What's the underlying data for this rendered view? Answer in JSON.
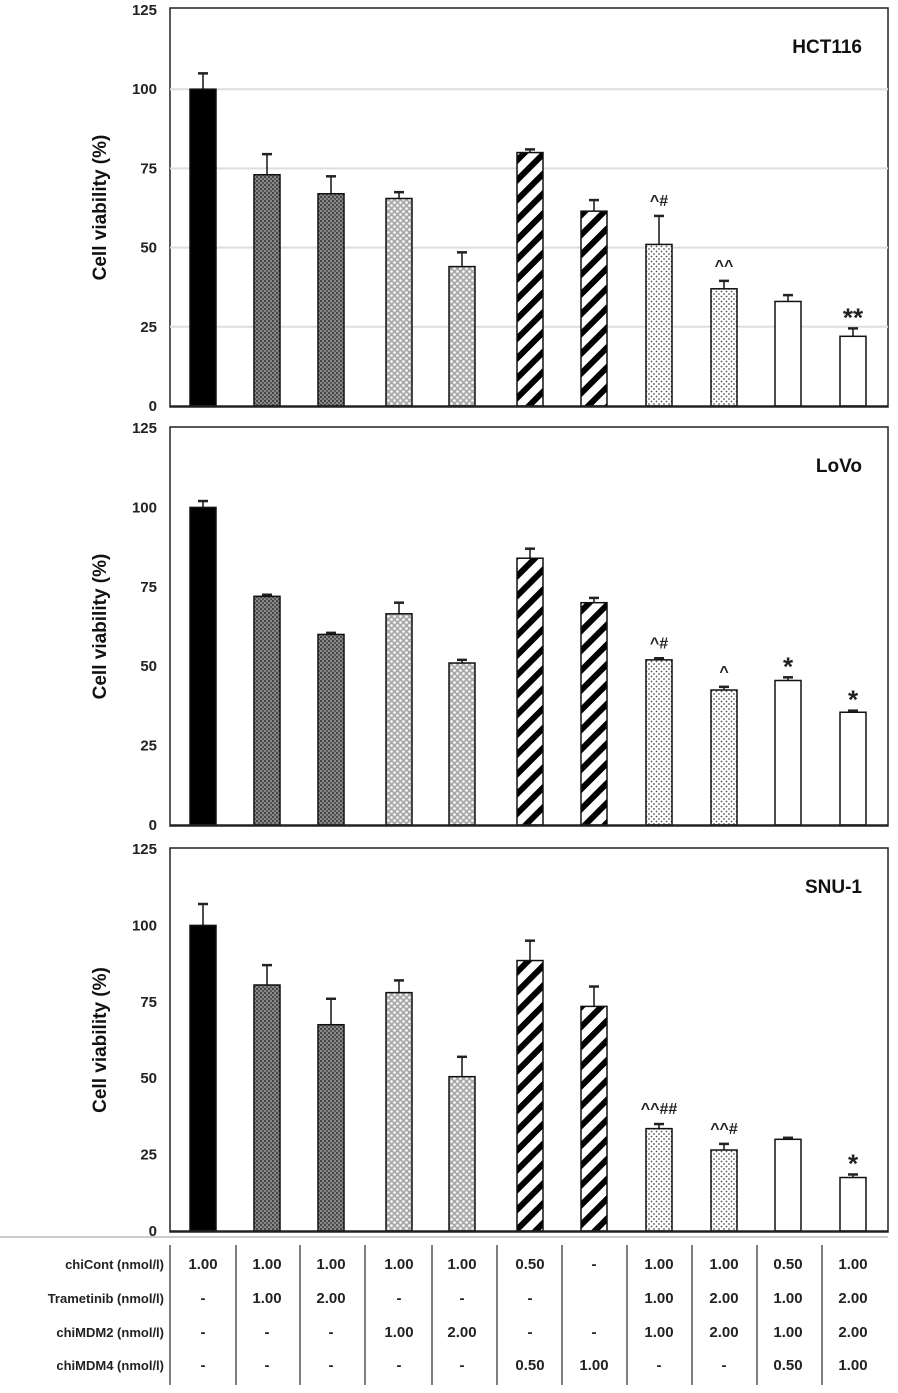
{
  "chart_data": [
    {
      "type": "bar",
      "title": "HCT116",
      "ylabel": "Cell viability (%)",
      "ylim": [
        0,
        125
      ],
      "yticks": [
        0,
        25,
        50,
        75,
        100,
        125
      ],
      "grid": true,
      "values": [
        100,
        73,
        67,
        65.5,
        44,
        80,
        61.5,
        51,
        37,
        33,
        22
      ],
      "error_upper": [
        105,
        79.5,
        72.5,
        67.5,
        48.5,
        81,
        65,
        60,
        39.5,
        35,
        24.5
      ],
      "annotations": [
        "",
        "",
        "",
        "",
        "",
        "",
        "",
        "^#",
        "^^",
        "",
        "**"
      ]
    },
    {
      "type": "bar",
      "title": "LoVo",
      "ylabel": "Cell viability (%)",
      "ylim": [
        0,
        125
      ],
      "yticks": [
        0,
        25,
        50,
        75,
        100,
        125
      ],
      "grid": false,
      "values": [
        100,
        72,
        60,
        66.5,
        51,
        84,
        70,
        52,
        42.5,
        45.5,
        35.5
      ],
      "error_upper": [
        102,
        72.5,
        60.5,
        70,
        52,
        87,
        71.5,
        52.5,
        43.5,
        46.5,
        36
      ],
      "annotations": [
        "",
        "",
        "",
        "",
        "",
        "",
        "",
        "^#",
        "^",
        "*",
        "*"
      ]
    },
    {
      "type": "bar",
      "title": "SNU-1",
      "ylabel": "Cell viability (%)",
      "ylim": [
        0,
        125
      ],
      "yticks": [
        0,
        25,
        50,
        75,
        100,
        125
      ],
      "grid": false,
      "values": [
        100,
        80.5,
        67.5,
        78,
        50.5,
        88.5,
        73.5,
        33.5,
        26.5,
        30,
        17.5
      ],
      "error_upper": [
        107,
        87,
        76,
        82,
        57,
        95,
        80,
        35,
        28.5,
        30.5,
        18.5
      ],
      "annotations": [
        "",
        "",
        "",
        "",
        "",
        "",
        "",
        "^^##",
        "^^#",
        "",
        "*"
      ]
    }
  ],
  "bar_fills": [
    "solid-black",
    "dense-crosshatch",
    "dense-crosshatch",
    "checker",
    "checker",
    "diagonal-stripes",
    "diagonal-stripes",
    "dots",
    "dots",
    "white",
    "white"
  ],
  "treatment_table": {
    "rows": [
      {
        "label": "chiCont (nmol/l)",
        "cells": [
          "1.00",
          "1.00",
          "1.00",
          "1.00",
          "1.00",
          "0.50",
          "-",
          "1.00",
          "1.00",
          "0.50",
          "1.00"
        ]
      },
      {
        "label": "Trametinib (nmol/l)",
        "cells": [
          "-",
          "1.00",
          "2.00",
          "-",
          "-",
          "-",
          "",
          "1.00",
          "2.00",
          "1.00",
          "2.00"
        ]
      },
      {
        "label": "chiMDM2 (nmol/l)",
        "cells": [
          "-",
          "-",
          "-",
          "1.00",
          "2.00",
          "-",
          "-",
          "1.00",
          "2.00",
          "1.00",
          "2.00"
        ]
      },
      {
        "label": "chiMDM4 (nmol/l)",
        "cells": [
          "-",
          "-",
          "-",
          "-",
          "-",
          "0.50",
          "1.00",
          "-",
          "-",
          "0.50",
          "1.00"
        ]
      }
    ]
  }
}
